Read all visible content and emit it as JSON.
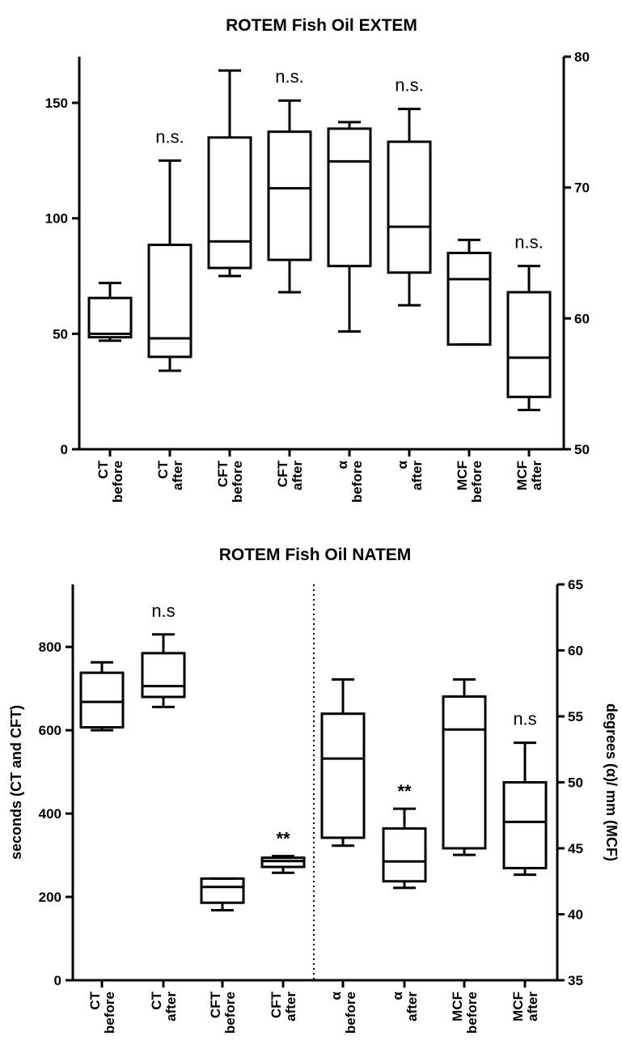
{
  "chart_data": [
    {
      "id": "extem",
      "type": "box",
      "title": "ROTEM Fish Oil EXTEM",
      "left_axis": {
        "label": "",
        "ylim": [
          0,
          170
        ],
        "ticks": [
          0,
          50,
          100,
          150
        ]
      },
      "right_axis": {
        "label": "",
        "ylim": [
          50,
          80
        ],
        "ticks": [
          50,
          60,
          70,
          80
        ]
      },
      "categories": [
        {
          "line1": "CT",
          "line2": "before",
          "axis": "left",
          "min": 47,
          "q1": 48.5,
          "median": 50,
          "q3": 65.5,
          "max": 72,
          "annotation": ""
        },
        {
          "line1": "CT",
          "line2": "after",
          "axis": "left",
          "min": 34,
          "q1": 40,
          "median": 48,
          "q3": 88.5,
          "max": 125,
          "annotation": "n.s."
        },
        {
          "line1": "CFT",
          "line2": "before",
          "axis": "left",
          "min": 75,
          "q1": 78.5,
          "median": 90,
          "q3": 135,
          "max": 164,
          "annotation": ""
        },
        {
          "line1": "CFT",
          "line2": "after",
          "axis": "left",
          "min": 68,
          "q1": 82,
          "median": 113,
          "q3": 137.5,
          "max": 151,
          "annotation": "n.s."
        },
        {
          "line1": "α",
          "line2": "before",
          "axis": "right",
          "min": 59,
          "q1": 64,
          "median": 72,
          "q3": 74.5,
          "max": 75,
          "annotation": ""
        },
        {
          "line1": "α",
          "line2": "after",
          "axis": "right",
          "min": 61,
          "q1": 63.5,
          "median": 67,
          "q3": 73.5,
          "max": 76,
          "annotation": "n.s."
        },
        {
          "line1": "MCF",
          "line2": "before",
          "axis": "right",
          "min": 58,
          "q1": 58,
          "median": 63,
          "q3": 65,
          "max": 66,
          "annotation": ""
        },
        {
          "line1": "MCF",
          "line2": "after",
          "axis": "right",
          "min": 53,
          "q1": 54,
          "median": 57,
          "q3": 62,
          "max": 64,
          "annotation": "n.s."
        }
      ]
    },
    {
      "id": "natem",
      "type": "box",
      "title": "ROTEM Fish Oil NATEM",
      "left_axis": {
        "label": "seconds (CT and CFT)",
        "ylim": [
          0,
          950
        ],
        "ticks": [
          0,
          200,
          400,
          600,
          800
        ]
      },
      "right_axis": {
        "label": "degrees (α)/ mm (MCF)",
        "ylim": [
          35,
          65
        ],
        "ticks": [
          35,
          40,
          45,
          50,
          55,
          60,
          65
        ]
      },
      "divider_after_index": 3,
      "categories": [
        {
          "line1": "CT",
          "line2": "before",
          "axis": "left",
          "min": 600,
          "q1": 607,
          "median": 668,
          "q3": 738,
          "max": 763,
          "annotation": ""
        },
        {
          "line1": "CT",
          "line2": "after",
          "axis": "left",
          "min": 656,
          "q1": 680,
          "median": 706,
          "q3": 785,
          "max": 830,
          "annotation": "n.s"
        },
        {
          "line1": "CFT",
          "line2": "before",
          "axis": "left",
          "min": 168,
          "q1": 186,
          "median": 224,
          "q3": 244,
          "max": 244,
          "annotation": ""
        },
        {
          "line1": "CFT",
          "line2": "after",
          "axis": "left",
          "min": 258,
          "q1": 272,
          "median": 286,
          "q3": 294,
          "max": 298,
          "annotation": "**"
        },
        {
          "line1": "α",
          "line2": "before",
          "axis": "right",
          "min": 45.2,
          "q1": 45.8,
          "median": 51.8,
          "q3": 55.2,
          "max": 57.8,
          "annotation": ""
        },
        {
          "line1": "α",
          "line2": "after",
          "axis": "right",
          "min": 42,
          "q1": 42.5,
          "median": 44,
          "q3": 46.5,
          "max": 48,
          "annotation": "**"
        },
        {
          "line1": "MCF",
          "line2": "before",
          "axis": "right",
          "min": 44.5,
          "q1": 45,
          "median": 54,
          "q3": 56.5,
          "max": 57.8,
          "annotation": ""
        },
        {
          "line1": "MCF",
          "line2": "after",
          "axis": "right",
          "min": 43,
          "q1": 43.5,
          "median": 47,
          "q3": 50,
          "max": 53,
          "annotation": "n.s"
        }
      ]
    }
  ]
}
